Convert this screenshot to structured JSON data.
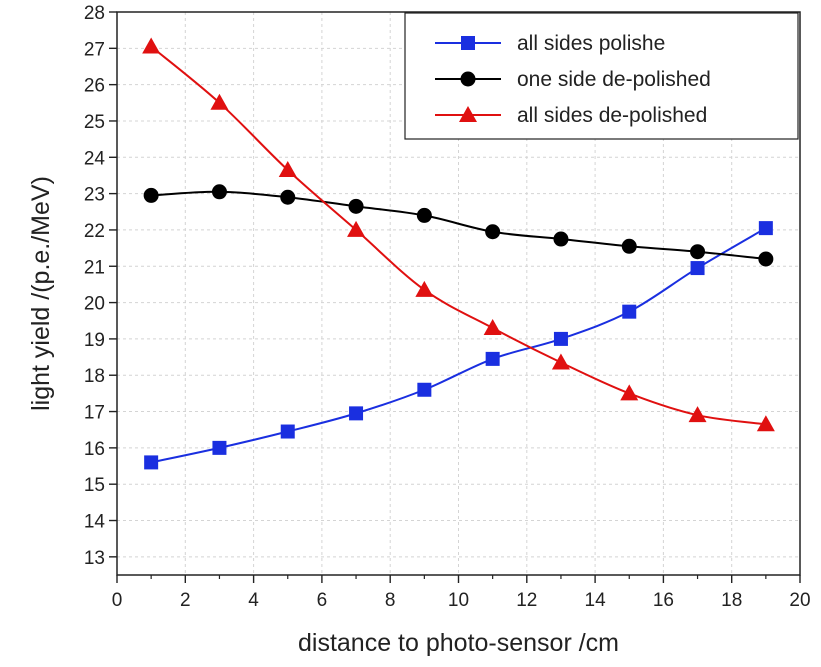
{
  "chart_data": {
    "type": "line",
    "xlabel": "distance to photo-sensor /cm",
    "ylabel": "light yield /(p.e./MeV)",
    "xlim": [
      0,
      20
    ],
    "ylim": [
      12.5,
      28
    ],
    "x_ticks": [
      0,
      2,
      4,
      6,
      8,
      10,
      12,
      14,
      16,
      18,
      20
    ],
    "y_ticks": [
      13,
      14,
      15,
      16,
      17,
      18,
      19,
      20,
      21,
      22,
      23,
      24,
      25,
      26,
      27,
      28
    ],
    "grid": true,
    "legend_position": "top-right",
    "series": [
      {
        "name": "all sides polishe",
        "color": "#1a2fe0",
        "marker": "square",
        "x": [
          1,
          3,
          5,
          7,
          9,
          11,
          13,
          15,
          17,
          19
        ],
        "y": [
          15.6,
          16.0,
          16.45,
          16.95,
          17.6,
          18.45,
          19.0,
          19.75,
          20.95,
          22.05
        ]
      },
      {
        "name": "one side de-polished",
        "color": "#000000",
        "marker": "circle",
        "x": [
          1,
          3,
          5,
          7,
          9,
          11,
          13,
          15,
          17,
          19
        ],
        "y": [
          22.95,
          23.05,
          22.9,
          22.65,
          22.4,
          21.95,
          21.75,
          21.55,
          21.4,
          21.2
        ]
      },
      {
        "name": "all sides de-polished",
        "color": "#e01010",
        "marker": "triangle",
        "x": [
          1,
          3,
          5,
          7,
          9,
          11,
          13,
          15,
          17,
          19
        ],
        "y": [
          27.05,
          25.5,
          23.65,
          22.0,
          20.35,
          19.3,
          18.35,
          17.5,
          16.9,
          16.65
        ]
      }
    ]
  }
}
